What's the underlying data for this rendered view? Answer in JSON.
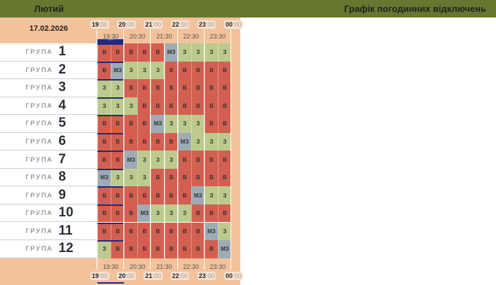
{
  "header": {
    "month": "Лютий",
    "title": "Графік погодинних відключень"
  },
  "date": "17.02.2026",
  "hours": [
    {
      "h": "19",
      "m": ":00"
    },
    {
      "h": "20",
      "m": ":00"
    },
    {
      "h": "21",
      "m": ":00"
    },
    {
      "h": "22",
      "m": ":00"
    },
    {
      "h": "23",
      "m": ":00"
    },
    {
      "h": "00",
      "m": ":00"
    }
  ],
  "halves": [
    "19:30",
    "20:30",
    "21:30",
    "22:30",
    "23:30"
  ],
  "group_label": "ГРУПА",
  "colors": {
    "В": "#d35f50",
    "З": "#bccb8d",
    "МЗ": "#9eabb4",
    "header": "#66772f",
    "band": "#f3c29c",
    "now": "#1f2a80"
  },
  "now_marker": "***",
  "groups": [
    {
      "n": "1",
      "cells": [
        "В",
        "В",
        "В",
        "В",
        "В",
        "МЗ",
        "З",
        "З",
        "З",
        "З"
      ]
    },
    {
      "n": "2",
      "cells": [
        "В",
        "МЗ",
        "З",
        "З",
        "З",
        "В",
        "В",
        "В",
        "В",
        "В"
      ]
    },
    {
      "n": "3",
      "cells": [
        "З",
        "З",
        "В",
        "В",
        "В",
        "В",
        "В",
        "В",
        "В",
        "В"
      ]
    },
    {
      "n": "4",
      "cells": [
        "З",
        "З",
        "З",
        "В",
        "В",
        "В",
        "В",
        "В",
        "В",
        "В"
      ]
    },
    {
      "n": "5",
      "cells": [
        "В",
        "В",
        "В",
        "В",
        "МЗ",
        "З",
        "З",
        "З",
        "В",
        "В"
      ]
    },
    {
      "n": "6",
      "cells": [
        "В",
        "В",
        "В",
        "В",
        "В",
        "В",
        "МЗ",
        "З",
        "З",
        "З"
      ]
    },
    {
      "n": "7",
      "cells": [
        "В",
        "В",
        "МЗ",
        "З",
        "З",
        "З",
        "В",
        "В",
        "В",
        "В"
      ]
    },
    {
      "n": "8",
      "cells": [
        "МЗ",
        "З",
        "З",
        "З",
        "В",
        "В",
        "В",
        "В",
        "В",
        "В"
      ]
    },
    {
      "n": "9",
      "cells": [
        "В",
        "В",
        "В",
        "В",
        "В",
        "В",
        "В",
        "МЗ",
        "З",
        "З"
      ]
    },
    {
      "n": "10",
      "cells": [
        "В",
        "В",
        "В",
        "МЗ",
        "З",
        "З",
        "З",
        "В",
        "В",
        "В"
      ]
    },
    {
      "n": "11",
      "cells": [
        "В",
        "В",
        "В",
        "В",
        "В",
        "В",
        "В",
        "В",
        "МЗ",
        "З"
      ]
    },
    {
      "n": "12",
      "cells": [
        "З",
        "В",
        "В",
        "В",
        "В",
        "В",
        "В",
        "В",
        "В",
        "МЗ"
      ]
    }
  ]
}
